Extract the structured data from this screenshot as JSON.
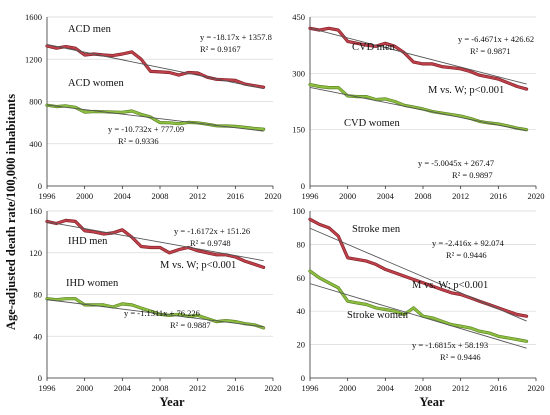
{
  "figure": {
    "ylabel": "Age-adjusted death rate/100,000 inhabitants",
    "xlabel": "Year"
  },
  "colors": {
    "men": "#c0404a",
    "men_edge": "#7a1e26",
    "women": "#8cbf3f",
    "women_edge": "#5a7d22",
    "trend": "#555555",
    "axis": "#333333",
    "grid": "#d9d9d9"
  },
  "chart_data": [
    {
      "type": "line",
      "xlim": [
        1996,
        2020
      ],
      "ylim": [
        0,
        1600
      ],
      "xticks": [
        1996,
        2000,
        2004,
        2008,
        2012,
        2016,
        2020
      ],
      "yticks": [
        0,
        400,
        800,
        1200,
        1600
      ],
      "grid": "horizontal",
      "x": [
        1996,
        1997,
        1998,
        1999,
        2000,
        2001,
        2002,
        2003,
        2004,
        2005,
        2006,
        2007,
        2008,
        2009,
        2010,
        2011,
        2012,
        2013,
        2014,
        2015,
        2016,
        2017,
        2018,
        2019
      ],
      "series": [
        {
          "name": "ACD men",
          "values": [
            1325,
            1305,
            1320,
            1305,
            1240,
            1250,
            1240,
            1235,
            1250,
            1270,
            1200,
            1085,
            1080,
            1075,
            1050,
            1075,
            1070,
            1030,
            1010,
            1005,
            1000,
            965,
            950,
            935
          ]
        },
        {
          "name": "ACD women",
          "values": [
            765,
            752,
            758,
            745,
            700,
            705,
            703,
            700,
            698,
            710,
            678,
            652,
            600,
            598,
            590,
            602,
            598,
            585,
            570,
            568,
            564,
            555,
            544,
            538
          ]
        }
      ],
      "trendlines": [
        {
          "slope": -18.17,
          "intercept": 1357.8,
          "equation": "y = -18.17x + 1357.8",
          "r2": "R² = 0.9167"
        },
        {
          "slope": -10.732,
          "intercept": 777.09,
          "equation": "y = -10.732x + 777.09",
          "r2": "R² = 0.9336"
        }
      ],
      "annotation": ""
    },
    {
      "type": "line",
      "xlim": [
        1996,
        2020
      ],
      "ylim": [
        0,
        450
      ],
      "xticks": [
        1996,
        2000,
        2004,
        2008,
        2012,
        2016,
        2020
      ],
      "yticks": [
        0,
        150,
        300,
        450
      ],
      "grid": "horizontal",
      "x": [
        1996,
        1997,
        1998,
        1999,
        2000,
        2001,
        2002,
        2003,
        2004,
        2005,
        2006,
        2007,
        2008,
        2009,
        2010,
        2011,
        2012,
        2013,
        2014,
        2015,
        2016,
        2017,
        2018,
        2019
      ],
      "series": [
        {
          "name": "CVD men",
          "values": [
            420,
            415,
            420,
            415,
            385,
            380,
            375,
            372,
            380,
            372,
            355,
            330,
            325,
            325,
            318,
            315,
            312,
            305,
            295,
            290,
            285,
            275,
            265,
            258
          ]
        },
        {
          "name": "CVD women",
          "values": [
            270,
            265,
            262,
            262,
            240,
            238,
            238,
            230,
            232,
            225,
            215,
            210,
            205,
            198,
            194,
            190,
            186,
            180,
            172,
            168,
            165,
            160,
            154,
            150
          ]
        }
      ],
      "trendlines": [
        {
          "slope": -6.4671,
          "intercept": 426.62,
          "equation": "y = -6.4671x + 426.62",
          "r2": "R² = 0.9871"
        },
        {
          "slope": -5.0045,
          "intercept": 267.47,
          "equation": "y = -5.0045x + 267.47",
          "r2": "R² = 0.9897"
        }
      ],
      "annotation": "M vs. W; p<0.001"
    },
    {
      "type": "line",
      "xlim": [
        1996,
        2020
      ],
      "ylim": [
        0,
        160
      ],
      "xticks": [
        1996,
        2000,
        2004,
        2008,
        2012,
        2016,
        2020
      ],
      "yticks": [
        0,
        40,
        80,
        120,
        160
      ],
      "grid": "horizontal",
      "x": [
        1996,
        1997,
        1998,
        1999,
        2000,
        2001,
        2002,
        2003,
        2004,
        2005,
        2006,
        2007,
        2008,
        2009,
        2010,
        2011,
        2012,
        2013,
        2014,
        2015,
        2016,
        2017,
        2018,
        2019
      ],
      "series": [
        {
          "name": "IHD men",
          "values": [
            150,
            148,
            151,
            150,
            141,
            140,
            138,
            139,
            142,
            135,
            126,
            125,
            125,
            120,
            123,
            125,
            122,
            120,
            118,
            118,
            116,
            112,
            109,
            106
          ]
        },
        {
          "name": "IHD women",
          "values": [
            76,
            75,
            76,
            76,
            70,
            70,
            70,
            68,
            71,
            70,
            67,
            64,
            61,
            60,
            61,
            59,
            60,
            57,
            54,
            55,
            54,
            52,
            51,
            48
          ]
        }
      ],
      "trendlines": [
        {
          "slope": -1.6172,
          "intercept": 151.26,
          "equation": "y = -1.6172x + 151.26",
          "r2": "R² = 0.9748"
        },
        {
          "slope": -1.1311,
          "intercept": 76.226,
          "equation": "y = -1.1311x + 76.226",
          "r2": "R² = 0.9887"
        }
      ],
      "annotation": "M vs. W; p<0.001"
    },
    {
      "type": "line",
      "xlim": [
        1996,
        2020
      ],
      "ylim": [
        0,
        100
      ],
      "xticks": [
        1996,
        2000,
        2004,
        2008,
        2012,
        2016,
        2020
      ],
      "yticks": [
        0,
        20,
        40,
        60,
        80,
        100
      ],
      "grid": "horizontal",
      "x": [
        1996,
        1997,
        1998,
        1999,
        2000,
        2001,
        2002,
        2003,
        2004,
        2005,
        2006,
        2007,
        2008,
        2009,
        2010,
        2011,
        2012,
        2013,
        2014,
        2015,
        2016,
        2017,
        2018,
        2019
      ],
      "series": [
        {
          "name": "Stroke men",
          "values": [
            95,
            92,
            90,
            85,
            72,
            71,
            70,
            68,
            65,
            63,
            61,
            59,
            57,
            55,
            53,
            51,
            50,
            48,
            46,
            44,
            42,
            40,
            38,
            37
          ]
        },
        {
          "name": "Stroke women",
          "values": [
            64,
            60,
            57,
            54,
            46,
            45,
            44,
            42,
            41,
            40,
            38,
            42,
            37,
            36,
            34,
            32,
            31,
            30,
            28,
            27,
            25,
            24,
            23,
            22
          ]
        }
      ],
      "trendlines": [
        {
          "slope": -2.416,
          "intercept": 92.074,
          "equation": "y = -2.416x + 92.074",
          "r2": "R² = 0.9446"
        },
        {
          "slope": -1.6815,
          "intercept": 58.193,
          "equation": "y = -1.6815x + 58.193",
          "r2": "R² = 0.9446"
        }
      ],
      "annotation": "M vs. W; p<0.001"
    }
  ]
}
